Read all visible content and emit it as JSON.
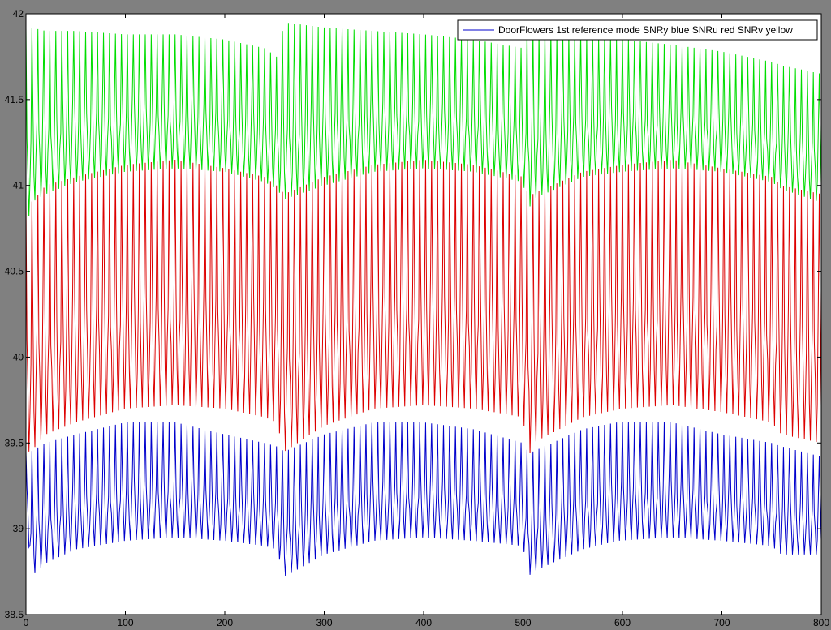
{
  "chart_data": {
    "type": "line",
    "title": "",
    "xlabel": "",
    "ylabel": "",
    "xlim": [
      0,
      800
    ],
    "ylim": [
      38.5,
      42
    ],
    "x_ticks": [
      "0",
      "100",
      "200",
      "300",
      "400",
      "500",
      "600",
      "700",
      "800"
    ],
    "y_ticks": [
      "38.5",
      "39",
      "39.5",
      "40",
      "40.5",
      "41",
      "41.5",
      "42"
    ],
    "grid": false,
    "legend": {
      "position": "top-right",
      "entries": [
        "DoorFlowers 1st reference mode SNRy blue SNRu red SNRv yellow"
      ]
    },
    "colors": {
      "blue": "#0000cc",
      "red": "#dd0000",
      "green": "#00dd00",
      "background": "#808080",
      "axes_bg": "#ffffff"
    },
    "x_step": 1,
    "series": [
      {
        "color": "blue",
        "envelope_x": [
          0,
          5,
          20,
          50,
          100,
          150,
          200,
          240,
          252,
          260,
          300,
          350,
          400,
          450,
          500,
          505,
          510,
          560,
          595,
          650,
          700,
          750,
          760,
          800
        ],
        "envelope_low": [
          39.15,
          38.72,
          38.8,
          38.88,
          38.93,
          38.95,
          38.93,
          38.9,
          38.88,
          38.72,
          38.85,
          38.93,
          38.95,
          38.93,
          38.9,
          38.72,
          38.75,
          38.88,
          38.93,
          38.95,
          38.93,
          38.9,
          38.85,
          38.85
        ],
        "envelope_high": [
          39.45,
          39.45,
          39.5,
          39.55,
          39.62,
          39.62,
          39.55,
          39.5,
          39.48,
          39.45,
          39.55,
          39.62,
          39.62,
          39.58,
          39.5,
          39.45,
          39.45,
          39.58,
          39.62,
          39.62,
          39.55,
          39.5,
          39.48,
          39.42
        ]
      },
      {
        "color": "red",
        "envelope_x": [
          0,
          5,
          20,
          50,
          100,
          150,
          200,
          240,
          252,
          260,
          300,
          350,
          400,
          450,
          500,
          505,
          510,
          560,
          600,
          650,
          700,
          750,
          760,
          800
        ],
        "envelope_low": [
          39.45,
          39.45,
          39.55,
          39.62,
          39.7,
          39.72,
          39.7,
          39.65,
          39.62,
          39.45,
          39.6,
          39.7,
          39.72,
          39.7,
          39.65,
          39.4,
          39.5,
          39.65,
          39.7,
          39.72,
          39.68,
          39.62,
          39.55,
          39.5
        ],
        "envelope_high": [
          40.9,
          40.9,
          41.0,
          41.05,
          41.12,
          41.15,
          41.1,
          41.05,
          41.0,
          40.95,
          41.05,
          41.12,
          41.15,
          41.12,
          41.05,
          40.95,
          40.95,
          41.08,
          41.12,
          41.15,
          41.1,
          41.05,
          41.0,
          40.95
        ]
      },
      {
        "color": "green",
        "envelope_x": [
          0,
          5,
          20,
          50,
          100,
          150,
          200,
          240,
          252,
          260,
          300,
          350,
          400,
          450,
          500,
          505,
          510,
          560,
          600,
          650,
          700,
          750,
          760,
          800
        ],
        "envelope_low": [
          40.7,
          40.9,
          40.95,
          41.02,
          41.08,
          41.1,
          41.08,
          41.02,
          40.98,
          40.92,
          41.0,
          41.08,
          41.1,
          41.08,
          41.02,
          40.85,
          40.92,
          41.05,
          41.08,
          41.1,
          41.08,
          41.02,
          40.98,
          40.9
        ],
        "envelope_high": [
          41.92,
          41.92,
          41.9,
          41.9,
          41.88,
          41.88,
          41.85,
          41.8,
          41.75,
          41.95,
          41.92,
          41.9,
          41.88,
          41.85,
          41.8,
          41.95,
          41.9,
          41.88,
          41.85,
          41.82,
          41.78,
          41.72,
          41.7,
          41.65
        ]
      }
    ]
  }
}
